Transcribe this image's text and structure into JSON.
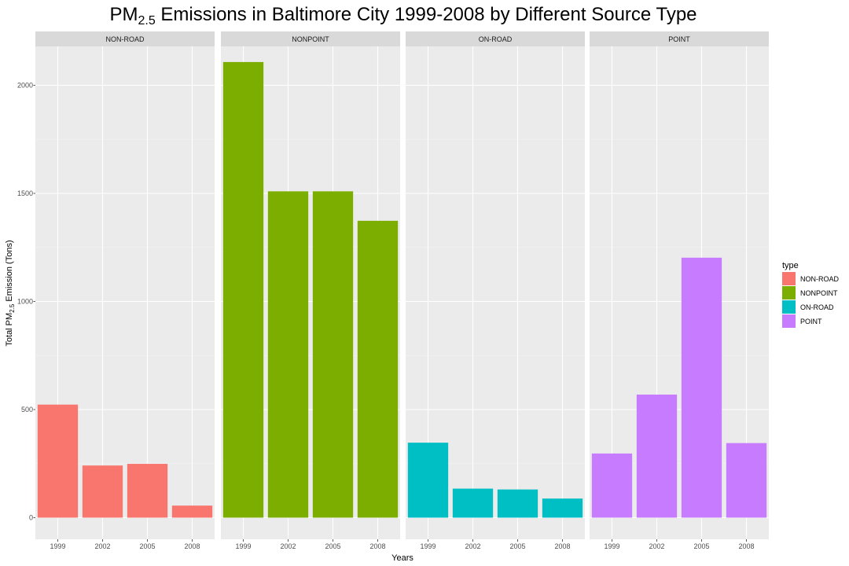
{
  "chart_data": {
    "type": "bar",
    "title": {
      "main": "PM",
      "sub": "2.5",
      "rest": " Emissions in Baltimore City 1999-2008 by Different Source Type"
    },
    "xlabel": "Years",
    "ylabel": {
      "main": "Total PM",
      "sub": "2.5",
      "rest": " Emission (Tons)"
    },
    "categories": [
      "1999",
      "2002",
      "2005",
      "2008"
    ],
    "ylim": [
      -100,
      2180
    ],
    "yticks": [
      0,
      500,
      1000,
      1500,
      2000
    ],
    "ytick_labels": [
      "0",
      "500",
      "1000",
      "1500",
      "2000"
    ],
    "grid": true,
    "legend": {
      "title": "type",
      "position": "right",
      "entries": [
        "NON-ROAD",
        "NONPOINT",
        "ON-ROAD",
        "POINT"
      ]
    },
    "facets": [
      {
        "name": "NON-ROAD",
        "color": "#F8766D",
        "values": [
          522.9,
          241.2,
          248.9,
          55.8
        ]
      },
      {
        "name": "NONPOINT",
        "color": "#7CAE00",
        "values": [
          2107.6,
          1509.5,
          1509.5,
          1373.2
        ]
      },
      {
        "name": "ON-ROAD",
        "color": "#00BFC4",
        "values": [
          346.8,
          134.3,
          130.4,
          88.3
        ]
      },
      {
        "name": "POINT",
        "color": "#C77CFF",
        "values": [
          296.8,
          569.3,
          1202.5,
          344.98
        ]
      }
    ]
  }
}
